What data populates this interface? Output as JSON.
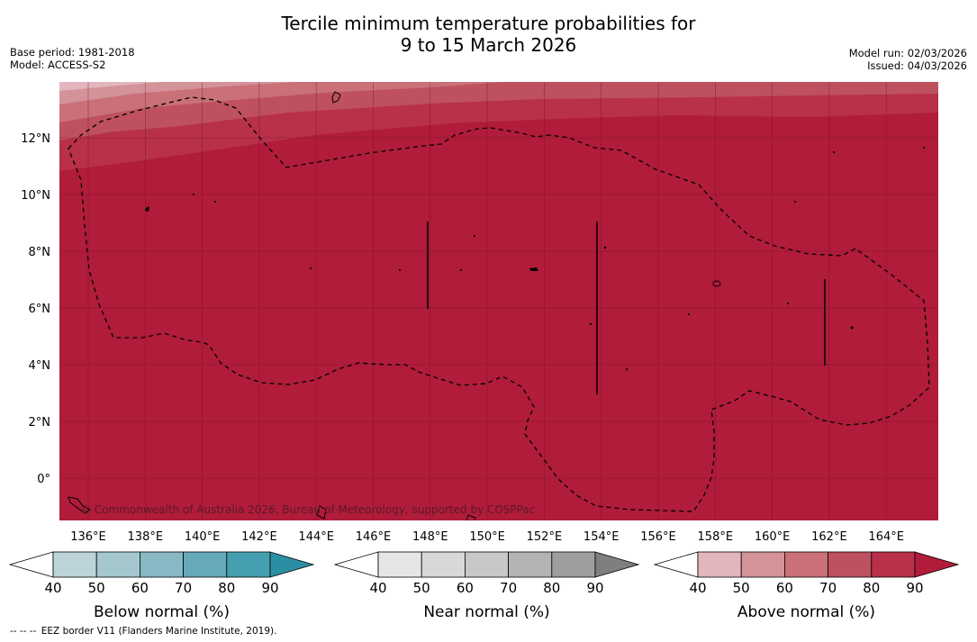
{
  "title": {
    "line1": "Tercile minimum temperature probabilities for",
    "line2": "9 to 15 March 2026"
  },
  "meta_left": {
    "base_period": "Base period: 1981-2018",
    "model": "Model: ACCESS-S2"
  },
  "meta_right": {
    "model_run": "Model run: 02/03/2026",
    "issued": "Issued: 04/03/2026"
  },
  "map": {
    "lat_labels": [
      "12°N",
      "10°N",
      "8°N",
      "6°N",
      "4°N",
      "2°N",
      "0°"
    ],
    "lon_labels": [
      "136°E",
      "138°E",
      "140°E",
      "142°E",
      "144°E",
      "146°E",
      "148°E",
      "150°E",
      "152°E",
      "154°E",
      "156°E",
      "158°E",
      "160°E",
      "162°E",
      "164°E"
    ],
    "copyright": "© Commonwealth of Australia 2026, Bureau of Meteorology, supported by COSPPac",
    "fill_color": "#b01c3a"
  },
  "legends": [
    {
      "title": "Below normal (%)",
      "ticks": [
        "40",
        "50",
        "60",
        "70",
        "80",
        "90"
      ],
      "colors": [
        "#ffffff",
        "#bcd3d9",
        "#a5c8cf",
        "#87b8c4",
        "#65a9ba",
        "#44a0b0",
        "#2b8fa3"
      ]
    },
    {
      "title": "Near normal (%)",
      "ticks": [
        "40",
        "50",
        "60",
        "70",
        "80",
        "90"
      ],
      "colors": [
        "#ffffff",
        "#e6e6e6",
        "#d8d8d8",
        "#c8c8c8",
        "#b4b4b4",
        "#9e9e9e",
        "#7f7f7f"
      ]
    },
    {
      "title": "Above normal (%)",
      "ticks": [
        "40",
        "50",
        "60",
        "70",
        "80",
        "90"
      ],
      "colors": [
        "#ffffff",
        "#e2b6bd",
        "#d49299",
        "#c97079",
        "#be5060",
        "#b83049",
        "#b01c3a"
      ]
    }
  ],
  "footer": {
    "dash": "--  --  --",
    "text": "EEZ border V11 (Flanders Marine Institute, 2019)."
  }
}
